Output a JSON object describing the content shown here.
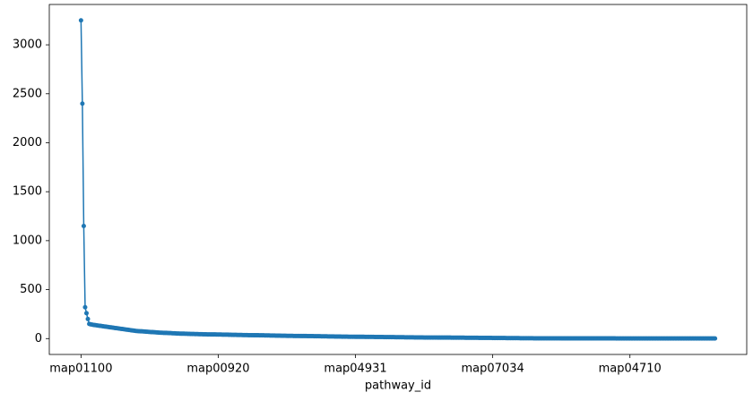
{
  "chart_data": {
    "type": "line",
    "x_label": "pathway_id",
    "color": "#1f77b4",
    "ylim": [
      -162,
      3412
    ],
    "yticks": [
      0,
      500,
      1000,
      1500,
      2000,
      2500,
      3000
    ],
    "categories": [
      "map01100",
      null,
      null,
      null,
      null,
      null,
      null,
      null,
      null,
      null,
      null,
      null,
      null,
      null,
      null,
      null,
      null,
      null,
      null,
      null,
      null,
      null,
      null,
      null,
      null,
      null,
      null,
      null,
      null,
      null,
      null,
      null,
      null,
      null,
      null,
      null,
      null,
      null,
      null,
      null,
      null,
      null,
      null,
      null,
      null,
      null,
      null,
      null,
      null,
      null,
      null,
      null,
      null,
      null,
      null,
      null,
      null,
      null,
      null,
      null,
      null,
      null,
      null,
      null,
      null,
      null,
      null,
      null,
      null,
      null,
      null,
      null,
      null,
      null,
      null,
      null,
      null,
      null,
      null,
      null,
      null,
      null,
      null,
      null,
      null,
      null,
      null,
      null,
      null,
      null,
      null,
      null,
      null,
      null,
      null,
      null,
      null,
      null,
      null,
      null,
      "map00920",
      null,
      null,
      null,
      null,
      null,
      null,
      null,
      null,
      null,
      null,
      null,
      null,
      null,
      null,
      null,
      null,
      null,
      null,
      null,
      null,
      null,
      null,
      null,
      null,
      null,
      null,
      null,
      null,
      null,
      null,
      null,
      null,
      null,
      null,
      null,
      null,
      null,
      null,
      null,
      null,
      null,
      null,
      null,
      null,
      null,
      null,
      null,
      null,
      null,
      null,
      null,
      null,
      null,
      null,
      null,
      null,
      null,
      null,
      null,
      null,
      null,
      null,
      null,
      null,
      null,
      null,
      null,
      null,
      null,
      null,
      null,
      null,
      null,
      null,
      null,
      null,
      null,
      null,
      null,
      null,
      null,
      null,
      null,
      null,
      null,
      null,
      null,
      null,
      null,
      null,
      null,
      null,
      null,
      null,
      null,
      null,
      null,
      null,
      null,
      "map04931",
      null,
      null,
      null,
      null,
      null,
      null,
      null,
      null,
      null,
      null,
      null,
      null,
      null,
      null,
      null,
      null,
      null,
      null,
      null,
      null,
      null,
      null,
      null,
      null,
      null,
      null,
      null,
      null,
      null,
      null,
      null,
      null,
      null,
      null,
      null,
      null,
      null,
      null,
      null,
      null,
      null,
      null,
      null,
      null,
      null,
      null,
      null,
      null,
      null,
      null,
      null,
      null,
      null,
      null,
      null,
      null,
      null,
      null,
      null,
      null,
      null,
      null,
      null,
      null,
      null,
      null,
      null,
      null,
      null,
      null,
      null,
      null,
      null,
      null,
      null,
      null,
      null,
      null,
      null,
      null,
      null,
      null,
      null,
      null,
      null,
      null,
      null,
      null,
      null,
      null,
      null,
      null,
      null,
      null,
      null,
      null,
      null,
      null,
      null,
      "map07034",
      null,
      null,
      null,
      null,
      null,
      null,
      null,
      null,
      null,
      null,
      null,
      null,
      null,
      null,
      null,
      null,
      null,
      null,
      null,
      null,
      null,
      null,
      null,
      null,
      null,
      null,
      null,
      null,
      null,
      null,
      null,
      null,
      null,
      null,
      null,
      null,
      null,
      null,
      null,
      null,
      null,
      null,
      null,
      null,
      null,
      null,
      null,
      null,
      null,
      null,
      null,
      null,
      null,
      null,
      null,
      null,
      null,
      null,
      null,
      null,
      null,
      null,
      null,
      null,
      null,
      null,
      null,
      null,
      null,
      null,
      null,
      null,
      null,
      null,
      null,
      null,
      null,
      null,
      null,
      null,
      null,
      null,
      null,
      null,
      null,
      null,
      null,
      null,
      null,
      null,
      null,
      null,
      null,
      null,
      null,
      null,
      null,
      null,
      null,
      "map04710",
      null,
      null,
      null,
      null,
      null,
      null,
      null,
      null,
      null,
      null,
      null,
      null,
      null,
      null,
      null,
      null,
      null,
      null,
      null,
      null,
      null,
      null,
      null,
      null,
      null,
      null,
      null,
      null,
      null,
      null,
      null,
      null,
      null,
      null,
      null,
      null,
      null,
      null,
      null,
      null,
      null,
      null,
      null,
      null,
      null,
      null,
      null,
      null,
      null,
      null,
      null,
      null,
      null,
      null,
      null,
      null,
      null,
      null,
      null,
      null,
      null,
      null
    ],
    "values": [
      3250,
      2400,
      1150,
      320,
      260,
      200,
      150,
      145,
      143,
      140,
      138,
      136,
      134,
      132,
      130,
      128,
      126,
      124,
      122,
      120,
      118,
      116,
      114,
      112,
      110,
      108,
      106,
      104,
      102,
      100,
      98,
      96,
      94,
      92,
      90,
      88,
      86,
      84,
      82,
      80,
      78,
      77,
      76,
      75,
      74,
      73,
      72,
      71,
      70,
      69,
      68,
      67,
      66,
      65,
      64,
      63,
      62,
      61,
      60,
      60,
      59,
      58,
      58,
      57,
      56,
      56,
      55,
      54,
      54,
      53,
      52,
      52,
      51,
      50,
      50,
      50,
      49,
      49,
      48,
      48,
      47,
      47,
      47,
      46,
      46,
      46,
      45,
      45,
      45,
      44,
      44,
      44,
      43,
      43,
      43,
      42,
      42,
      42,
      42,
      41,
      41,
      41,
      41,
      40,
      40,
      40,
      40,
      40,
      39,
      39,
      38,
      38,
      38,
      38,
      37,
      37,
      37,
      37,
      36,
      36,
      36,
      36,
      35,
      35,
      35,
      35,
      34,
      34,
      34,
      34,
      33,
      33,
      33,
      33,
      32,
      32,
      32,
      32,
      31,
      31,
      31,
      31,
      30,
      30,
      30,
      30,
      29,
      29,
      29,
      29,
      28,
      28,
      28,
      28,
      28,
      27,
      27,
      27,
      27,
      27,
      26,
      26,
      26,
      26,
      26,
      25,
      25,
      25,
      25,
      25,
      24,
      24,
      24,
      24,
      24,
      23,
      23,
      23,
      23,
      23,
      22,
      22,
      22,
      22,
      22,
      21,
      21,
      21,
      21,
      21,
      20,
      20,
      20,
      20,
      20,
      19,
      19,
      19,
      19,
      19,
      18,
      18,
      18,
      18,
      18,
      18,
      18,
      17,
      17,
      17,
      17,
      17,
      17,
      17,
      16,
      16,
      16,
      16,
      16,
      16,
      16,
      15,
      15,
      15,
      15,
      15,
      15,
      15,
      15,
      14,
      14,
      14,
      14,
      14,
      14,
      14,
      13,
      13,
      13,
      13,
      13,
      13,
      13,
      12,
      12,
      12,
      12,
      12,
      12,
      12,
      11,
      11,
      11,
      11,
      11,
      11,
      11,
      11,
      11,
      11,
      10,
      10,
      10,
      10,
      10,
      10,
      10,
      10,
      10,
      10,
      9,
      9,
      9,
      9,
      9,
      9,
      9,
      9,
      9,
      9,
      8,
      8,
      8,
      8,
      8,
      8,
      8,
      8,
      8,
      8,
      7,
      7,
      7,
      7,
      7,
      7,
      7,
      7,
      7,
      7,
      6,
      6,
      6,
      6,
      6,
      6,
      6,
      6,
      6,
      6,
      5,
      5,
      5,
      5,
      5,
      5,
      5,
      5,
      5,
      5,
      4,
      4,
      4,
      4,
      4,
      4,
      4,
      4,
      4,
      4,
      3,
      3,
      3,
      3,
      3,
      3,
      3,
      3,
      3,
      3,
      3,
      3,
      3,
      3,
      3,
      3,
      3,
      3,
      3,
      3,
      2,
      2,
      2,
      2,
      2,
      2,
      2,
      2,
      2,
      2,
      2,
      2,
      2,
      2,
      2,
      2,
      2,
      2,
      2,
      2,
      2,
      2,
      2,
      2,
      2,
      2,
      2,
      2,
      2,
      2,
      2,
      2,
      2,
      2,
      2,
      2,
      2,
      2,
      2,
      2,
      1,
      1,
      1,
      1,
      1,
      1,
      1,
      1,
      1,
      1,
      1,
      1,
      1,
      1,
      1,
      1,
      1,
      1,
      1,
      1,
      1,
      1,
      1,
      1,
      1,
      1,
      1,
      1,
      1,
      1,
      1,
      1,
      1,
      1,
      1,
      1,
      1,
      1,
      1,
      1,
      1,
      1,
      1,
      1,
      1,
      1,
      1,
      1,
      1,
      1,
      1,
      1,
      1,
      1,
      1,
      1,
      1,
      1,
      1,
      1,
      1,
      1,
      1,
      1,
      1,
      1,
      1,
      1,
      1,
      1,
      1,
      1,
      1
    ]
  }
}
